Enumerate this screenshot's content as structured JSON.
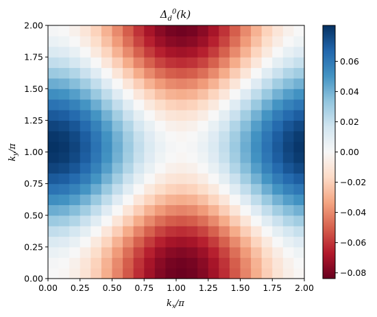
{
  "chart_data": {
    "type": "heatmap",
    "title": "Δ_d^0(k)",
    "xlabel": "k_x/π",
    "ylabel": "k_y/π",
    "xlim": [
      0,
      2
    ],
    "ylim": [
      0,
      2
    ],
    "grid": false,
    "colormap": "RdBu",
    "nx": 24,
    "ny": 24,
    "formula": "value = 0.083 * (cos(pi*kx) - cos(pi*ky)) / 2",
    "amplitude": 0.083,
    "vmin": -0.0838,
    "vmax": 0.0838,
    "x_ticks": [
      "0.00",
      "0.25",
      "0.50",
      "0.75",
      "1.00",
      "1.25",
      "1.50",
      "1.75",
      "2.00"
    ],
    "y_ticks": [
      "0.00",
      "0.25",
      "0.50",
      "0.75",
      "1.00",
      "1.25",
      "1.50",
      "1.75",
      "2.00"
    ],
    "colorbar_ticks": [
      0.06,
      0.04,
      0.02,
      0.0,
      -0.02,
      -0.04,
      -0.06,
      -0.08
    ],
    "colorbar_tick_labels": [
      "0.06",
      "0.04",
      "0.02",
      "0.00",
      "−0.02",
      "−0.04",
      "−0.06",
      "−0.08"
    ]
  },
  "colors": {
    "negative_extreme": "#67001f",
    "zero": "#f7f7f7",
    "positive_extreme": "#053061"
  }
}
